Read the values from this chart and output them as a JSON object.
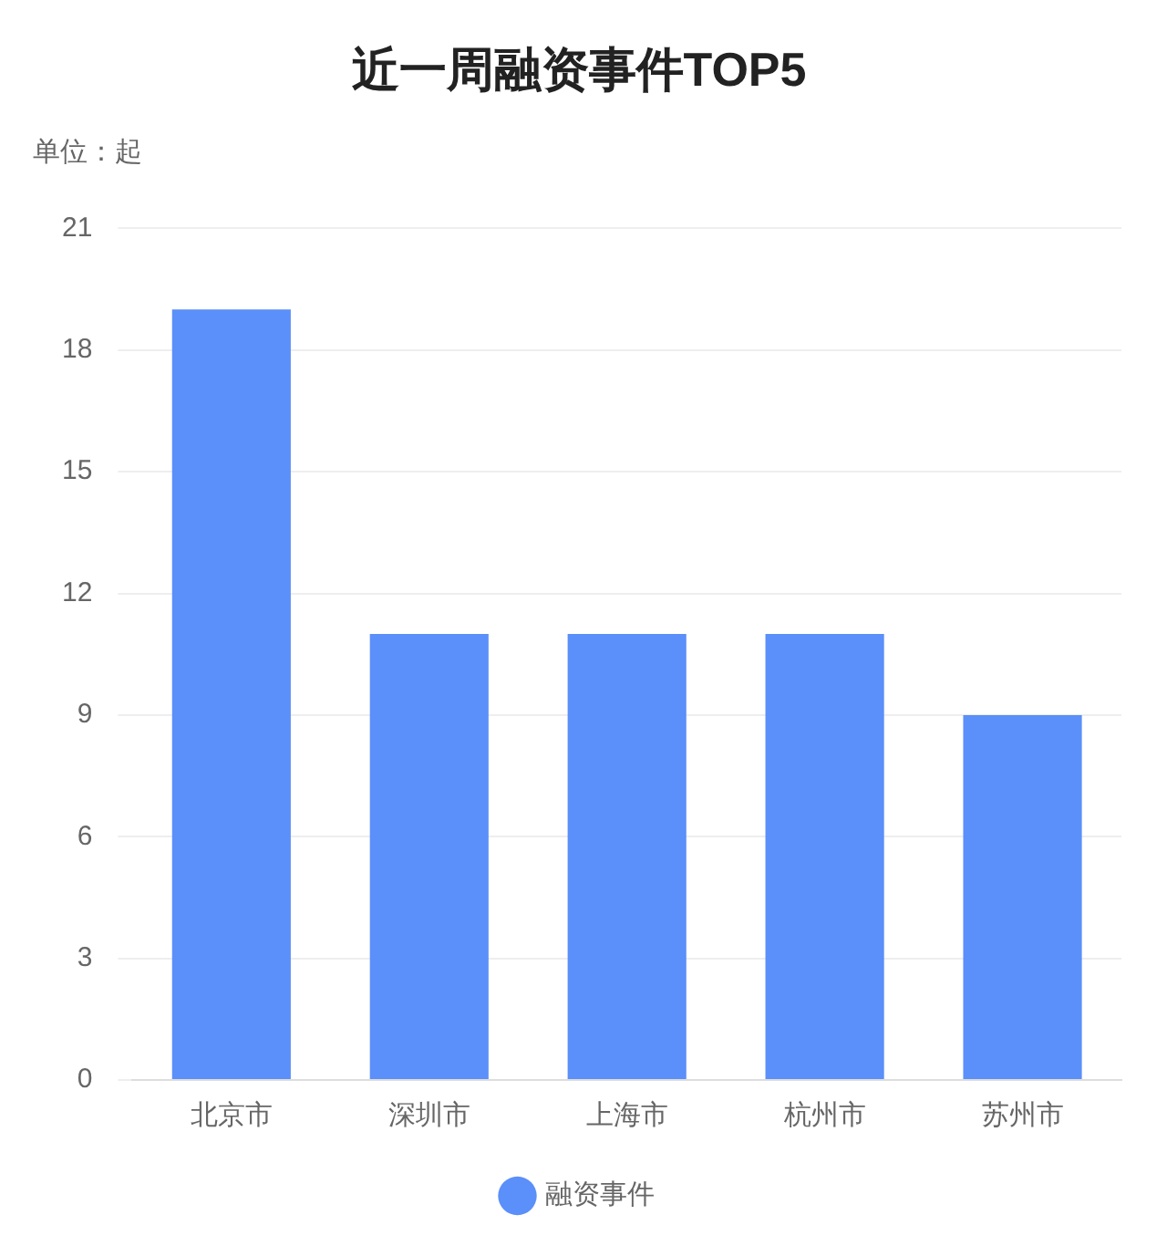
{
  "chart_data": {
    "type": "bar",
    "title": "近一周融资事件TOP5",
    "ylabel": "单位：起",
    "categories": [
      "北京市",
      "深圳市",
      "上海市",
      "杭州市",
      "苏州市"
    ],
    "series": [
      {
        "name": "融资事件",
        "color": "#5b8ff9",
        "values": [
          19,
          11,
          11,
          11,
          9
        ]
      }
    ],
    "ylim": [
      0,
      21
    ],
    "yticks": [
      0,
      3,
      6,
      9,
      12,
      15,
      18,
      21
    ],
    "grid": "y",
    "legend": "bottom"
  }
}
